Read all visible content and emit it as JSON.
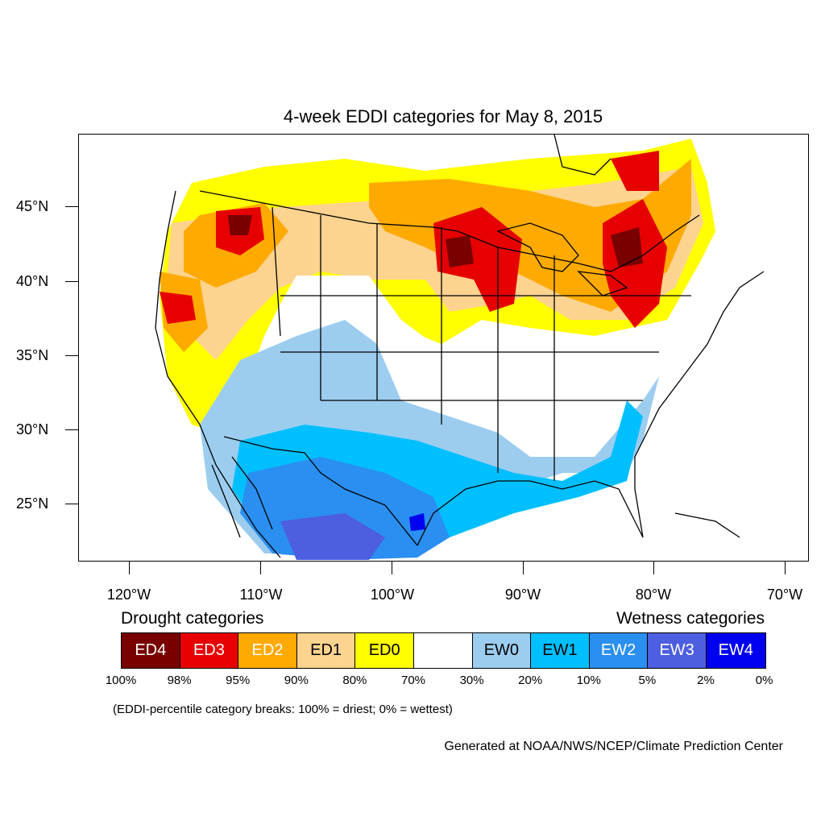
{
  "title": "4-week EDDI categories for May 8, 2015",
  "lat_labels": [
    "45°N",
    "40°N",
    "35°N",
    "30°N",
    "25°N"
  ],
  "lon_labels": [
    "120°W",
    "110°W",
    "100°W",
    "90°W",
    "80°W",
    "70°W"
  ],
  "legend": {
    "drought_heading": "Drought categories",
    "wetness_heading": "Wetness categories",
    "categories": [
      {
        "label": "ED4",
        "color": "#780000",
        "text_color": "#ffffff"
      },
      {
        "label": "ED3",
        "color": "#e60000",
        "text_color": "#ffffff"
      },
      {
        "label": "ED2",
        "color": "#ffaa00",
        "text_color": "#ffffff"
      },
      {
        "label": "ED1",
        "color": "#fcd38f",
        "text_color": "#000000"
      },
      {
        "label": "ED0",
        "color": "#ffff00",
        "text_color": "#000000"
      },
      {
        "label": "",
        "color": "#ffffff",
        "text_color": "#000000"
      },
      {
        "label": "EW0",
        "color": "#9ccdef",
        "text_color": "#000000"
      },
      {
        "label": "EW1",
        "color": "#00bfff",
        "text_color": "#000000"
      },
      {
        "label": "EW2",
        "color": "#2a8ff0",
        "text_color": "#ffffff"
      },
      {
        "label": "EW3",
        "color": "#4d5ee0",
        "text_color": "#ffffff"
      },
      {
        "label": "EW4",
        "color": "#0000f0",
        "text_color": "#ffffff"
      }
    ],
    "percentiles": [
      "100%",
      "98%",
      "95%",
      "90%",
      "80%",
      "70%",
      "30%",
      "20%",
      "10%",
      "5%",
      "2%",
      "0%"
    ],
    "note": "(EDDI-percentile category breaks: 100% = driest; 0% = wettest)"
  },
  "credit": "Generated at NOAA/NWS/NCEP/Climate Prediction Center"
}
